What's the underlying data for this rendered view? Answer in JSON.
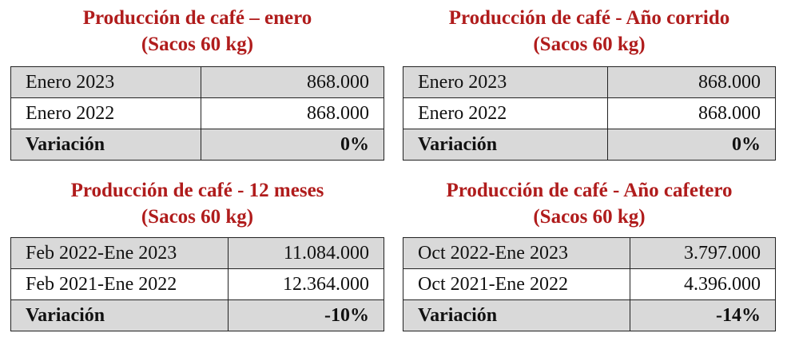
{
  "tables": [
    {
      "title": "Producción de café – enero",
      "subtitle": "(Sacos 60 kg)",
      "rows": [
        [
          "Enero 2023",
          "868.000"
        ],
        [
          "Enero 2022",
          "868.000"
        ],
        [
          "Variación",
          "0%"
        ]
      ]
    },
    {
      "title": "Producción de café - Año corrido",
      "subtitle": "(Sacos 60 kg)",
      "rows": [
        [
          "Enero 2023",
          "868.000"
        ],
        [
          "Enero 2022",
          "868.000"
        ],
        [
          "Variación",
          "0%"
        ]
      ]
    },
    {
      "title": "Producción de café - 12 meses",
      "subtitle": "(Sacos 60 kg)",
      "rows": [
        [
          "Feb 2022-Ene 2023",
          "11.084.000"
        ],
        [
          "Feb 2021-Ene 2022",
          "12.364.000"
        ],
        [
          "Variación",
          "-10%"
        ]
      ]
    },
    {
      "title": "Producción de café - Año cafetero",
      "subtitle": "(Sacos 60 kg)",
      "rows": [
        [
          "Oct 2022-Ene 2023",
          "3.797.000"
        ],
        [
          "Oct 2021-Ene 2022",
          "4.396.000"
        ],
        [
          "Variación",
          "-14%"
        ]
      ]
    }
  ]
}
